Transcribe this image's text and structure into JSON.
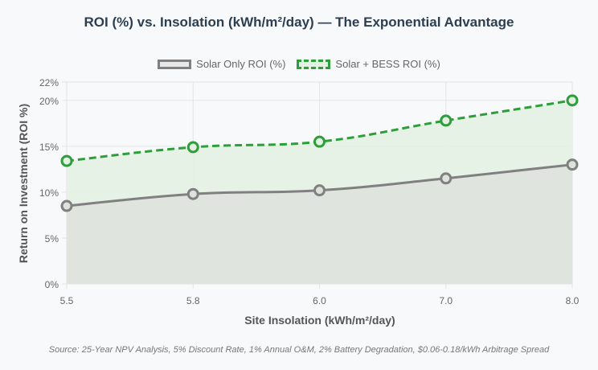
{
  "chart_data": {
    "type": "line",
    "title": "ROI (%) vs. Insolation (kWh/m²/day) — The Exponential Advantage",
    "xlabel": "Site Insolation (kWh/m²/day)",
    "ylabel": "Return on Investment (ROI %)",
    "categories": [
      "5.5",
      "5.8",
      "6.0",
      "7.0",
      "8.0"
    ],
    "ylim": [
      0,
      22
    ],
    "yticks": [
      0,
      5,
      10,
      15,
      20,
      22
    ],
    "ytick_labels": [
      "0%",
      "5%",
      "10%",
      "15%",
      "20%",
      "22%"
    ],
    "grid": true,
    "legend_position": "top-center",
    "series": [
      {
        "name": "Solar Only ROI (%)",
        "values": [
          8.5,
          9.8,
          10.2,
          11.5,
          13.0
        ],
        "color": "#808080",
        "fill": "#dde3dc",
        "style": "solid"
      },
      {
        "name": "Solar + BESS ROI (%)",
        "values": [
          13.4,
          14.9,
          15.5,
          17.8,
          20.0
        ],
        "color": "#2e9e3a",
        "fill": "#e3f1e3",
        "style": "dashed"
      }
    ]
  },
  "legend": {
    "solar_only": "Solar Only ROI (%)",
    "solar_bess": "Solar + BESS ROI (%)"
  },
  "source_note": "Source: 25-Year NPV Analysis, 5% Discount Rate, 1% Annual O&M, 2% Battery Degradation, $0.06-0.18/kWh Arbitrage Spread"
}
